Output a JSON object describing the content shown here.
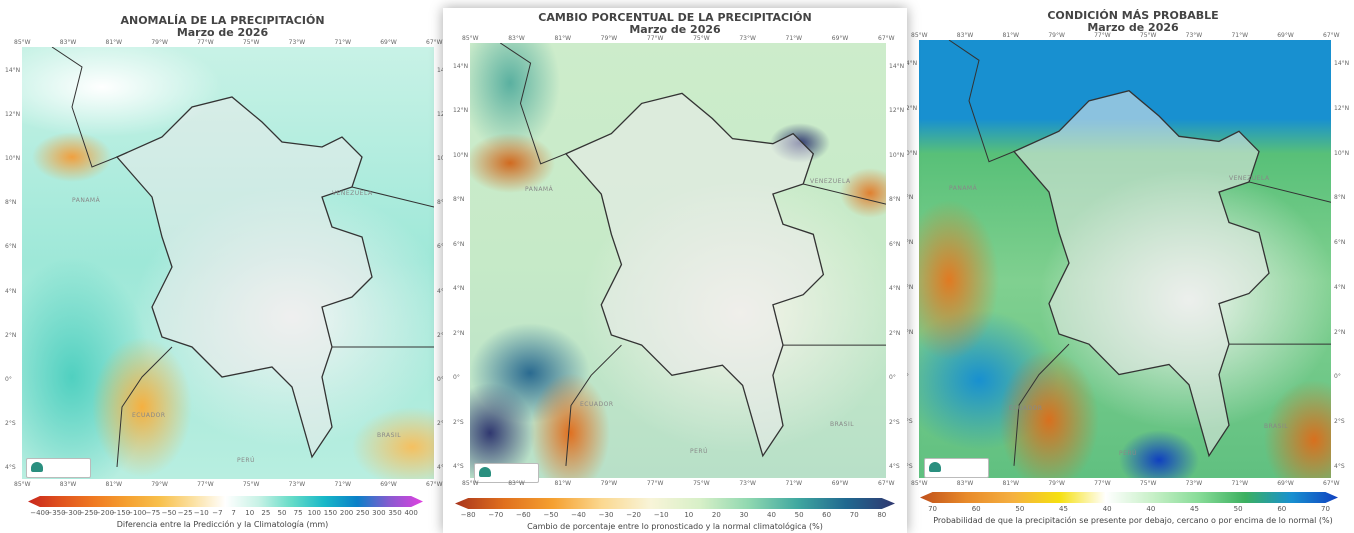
{
  "lon_labels": [
    "85°W",
    "83°W",
    "81°W",
    "79°W",
    "77°W",
    "75°W",
    "73°W",
    "71°W",
    "69°W",
    "67°W"
  ],
  "lat_labels": [
    "14°N",
    "12°N",
    "10°N",
    "8°N",
    "6°N",
    "4°N",
    "2°N",
    "0°",
    "2°S",
    "4°S"
  ],
  "countries": {
    "venezuela": "VENEZUELA",
    "peru": "PERÚ",
    "brasil": "BRASIL",
    "ecuador": "ECUADOR",
    "panama": "PANAMÁ"
  },
  "panels": [
    {
      "title": "ANOMALÍA DE LA PRECIPITACIÓN",
      "subtitle": "Marzo de 2026",
      "colorbar": {
        "label": "Diferencia entre la Predicción y la Climatología (mm)",
        "ticks": [
          "−400",
          "−350",
          "−300",
          "−250",
          "−200",
          "−150",
          "−100",
          "−75",
          "−50",
          "−25",
          "−10",
          "−7",
          "7",
          "10",
          "25",
          "50",
          "75",
          "100",
          "150",
          "200",
          "250",
          "300",
          "350",
          "400"
        ],
        "colors": [
          "#c8261c",
          "#e0531e",
          "#f07a22",
          "#f5a030",
          "#f8c04c",
          "#fbe0a0",
          "#ffffff",
          "#c8f2e6",
          "#66dcc8",
          "#18b8c8",
          "#0a80c8",
          "#8a5ad0",
          "#e040e0"
        ]
      }
    },
    {
      "title": "CAMBIO PORCENTUAL DE LA PRECIPITACIÓN",
      "subtitle": "Marzo de 2026",
      "colorbar": {
        "label": "Cambio de porcentaje entre lo pronosticado y la normal climatológica (%)",
        "ticks": [
          "−80",
          "−70",
          "−60",
          "−50",
          "−40",
          "−30",
          "−20",
          "−10",
          "10",
          "20",
          "30",
          "40",
          "50",
          "60",
          "70",
          "80"
        ],
        "colors": [
          "#a8341c",
          "#e0701e",
          "#f5a030",
          "#fbd890",
          "#f8f4d8",
          "#d8f0c8",
          "#90d8b0",
          "#40a8a0",
          "#206890",
          "#303870"
        ]
      }
    },
    {
      "title": "CONDICIÓN MÁS PROBABLE",
      "subtitle": "Marzo de 2026",
      "colorbar": {
        "label": "Probabilidad de que la precipitación se presente por debajo, cercano o por encima de lo normal (%)",
        "ticks": [
          "70",
          "60",
          "50",
          "45",
          "40",
          "40",
          "45",
          "50",
          "60",
          "70"
        ],
        "colors": [
          "#c0501a",
          "#e88a2a",
          "#f5b040",
          "#f5e010",
          "#ffffff",
          "#c8f0c8",
          "#88dc98",
          "#3cb060",
          "#1890d0",
          "#1040c0"
        ]
      }
    }
  ]
}
